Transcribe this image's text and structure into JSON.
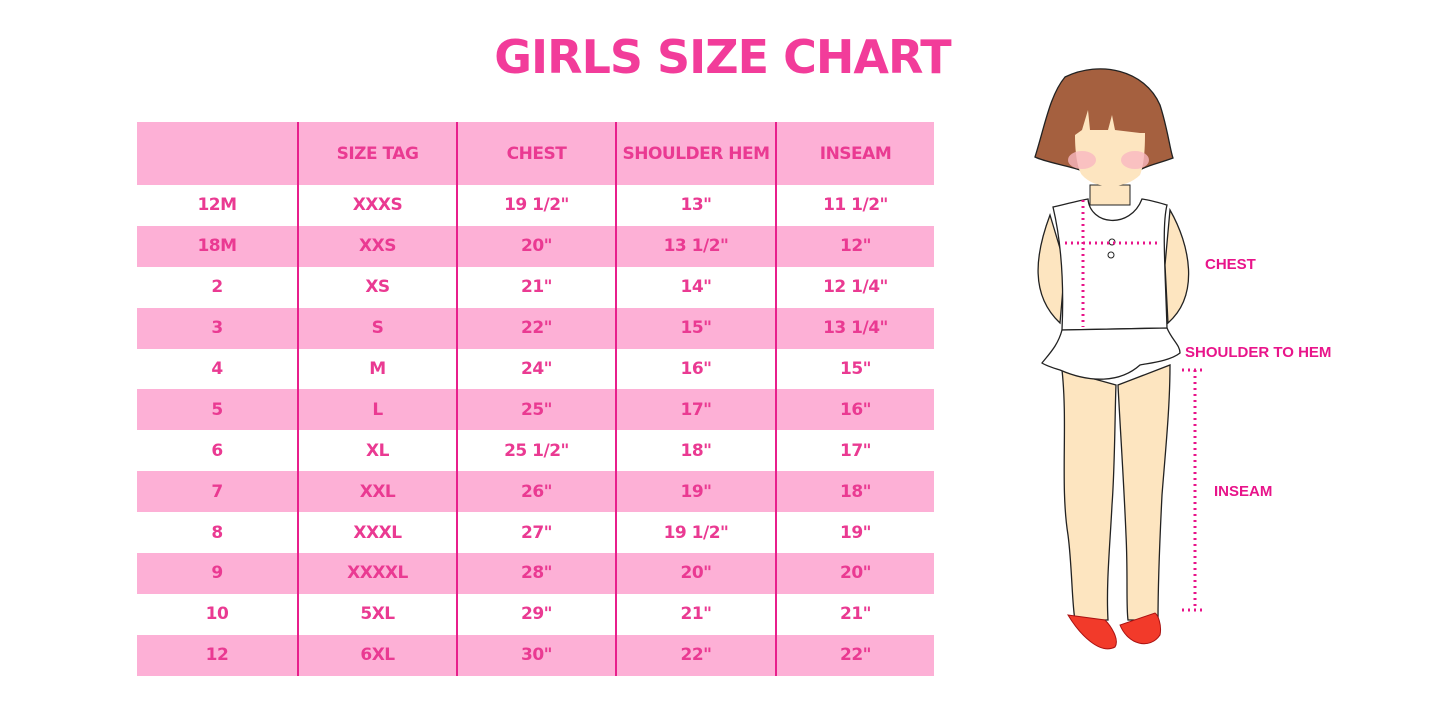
{
  "title": "GIRLS SIZE CHART",
  "colors": {
    "title": "#f23c9a",
    "row_pink": "#fdb0d6",
    "text": "#ea3a92",
    "divider": "#e81f8c",
    "label": "#e8148a"
  },
  "table": {
    "headers": [
      "",
      "SIZE TAG",
      "CHEST",
      "SHOULDER HEM",
      "INSEAM"
    ],
    "rows": [
      [
        "12M",
        "XXXS",
        "19 1/2\"",
        "13\"",
        "11 1/2\""
      ],
      [
        "18M",
        "XXS",
        "20\"",
        "13 1/2\"",
        "12\""
      ],
      [
        "2",
        "XS",
        "21\"",
        "14\"",
        "12 1/4\""
      ],
      [
        "3",
        "S",
        "22\"",
        "15\"",
        "13 1/4\""
      ],
      [
        "4",
        "M",
        "24\"",
        "16\"",
        "15\""
      ],
      [
        "5",
        "L",
        "25\"",
        "17\"",
        "16\""
      ],
      [
        "6",
        "XL",
        "25 1/2\"",
        "18\"",
        "17\""
      ],
      [
        "7",
        "XXL",
        "26\"",
        "19\"",
        "18\""
      ],
      [
        "8",
        "XXXL",
        "27\"",
        "19 1/2\"",
        "19\""
      ],
      [
        "9",
        "XXXXL",
        "28\"",
        "20\"",
        "20\""
      ],
      [
        "10",
        "5XL",
        "29\"",
        "21\"",
        "21\""
      ],
      [
        "12",
        "6XL",
        "30\"",
        "22\"",
        "22\""
      ]
    ]
  },
  "illustration": {
    "labels": {
      "chest": "CHEST",
      "shoulder": "SHOULDER TO HEM",
      "inseam": "INSEAM"
    }
  }
}
